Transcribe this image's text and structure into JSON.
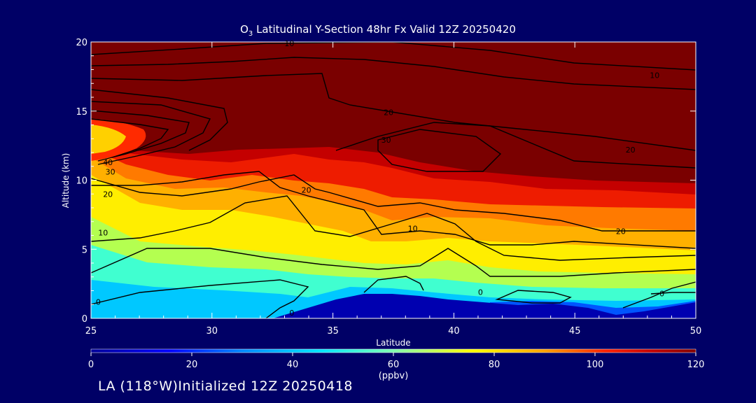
{
  "chart_data": {
    "type": "heatmap",
    "title_main": "O",
    "title_sub": "3",
    "title_rest": " Latitudinal Y-Section 48hr  Fx Valid 12Z 20250420",
    "xlabel": "Latitude",
    "ylabel": "Altitude (km)",
    "xlim": [
      25,
      50
    ],
    "ylim": [
      0,
      20
    ],
    "x_ticks": [
      "25",
      "30",
      "35",
      "40",
      "45",
      "50"
    ],
    "y_ticks": [
      "0",
      "5",
      "10",
      "15",
      "20"
    ],
    "colorbar": {
      "min": 0,
      "max": 120,
      "ticks": [
        "0",
        "20",
        "40",
        "60",
        "80",
        "100",
        "120"
      ],
      "label": "(ppbv)",
      "colors": [
        "#000099",
        "#0000ff",
        "#0088ff",
        "#00e6ff",
        "#80ffb0",
        "#ffff00",
        "#ffa000",
        "#ff2000",
        "#c00000",
        "#800000"
      ]
    },
    "contour_labels": [
      {
        "text": "10",
        "lat": 33.2,
        "alt": 19.9
      },
      {
        "text": "10",
        "lat": 48.3,
        "alt": 17.6
      },
      {
        "text": "20",
        "lat": 37.3,
        "alt": 14.9
      },
      {
        "text": "30",
        "lat": 37.2,
        "alt": 12.9
      },
      {
        "text": "20",
        "lat": 47.3,
        "alt": 12.2
      },
      {
        "text": "40",
        "lat": 25.7,
        "alt": 11.3
      },
      {
        "text": "30",
        "lat": 25.8,
        "alt": 10.6
      },
      {
        "text": "20",
        "lat": 25.7,
        "alt": 9.0
      },
      {
        "text": "20",
        "lat": 33.9,
        "alt": 9.3
      },
      {
        "text": "10",
        "lat": 25.5,
        "alt": 6.2
      },
      {
        "text": "10",
        "lat": 38.3,
        "alt": 6.5
      },
      {
        "text": "20",
        "lat": 46.9,
        "alt": 6.3
      },
      {
        "text": "0",
        "lat": 25.3,
        "alt": 1.2
      },
      {
        "text": "0",
        "lat": 33.3,
        "alt": 0.4
      },
      {
        "text": "0",
        "lat": 41.1,
        "alt": 1.9
      },
      {
        "text": "0",
        "lat": 48.6,
        "alt": 1.8
      }
    ]
  },
  "footer": "LA (118°W)Initialized 12Z 20250418"
}
